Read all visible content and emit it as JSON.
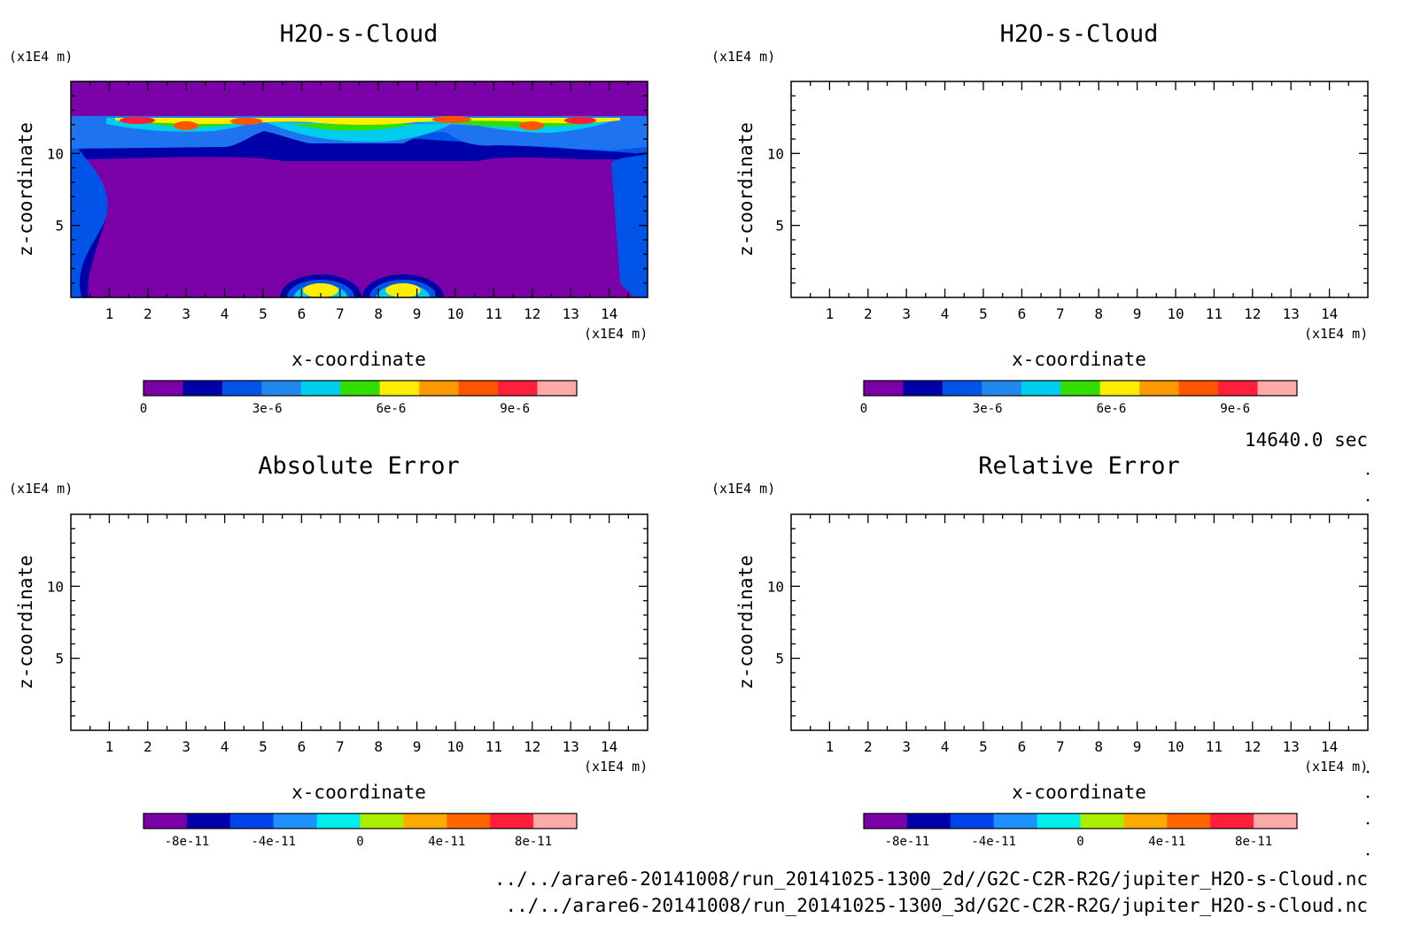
{
  "chart_data": [
    {
      "type": "heatmap",
      "title": "H2O-s-Cloud",
      "xlabel": "x-coordinate",
      "ylabel": "z-coordinate",
      "x_unit": "(x1E4 m)",
      "y_unit": "(x1E4 m)",
      "xlim": [
        0,
        15
      ],
      "ylim": [
        0,
        15
      ],
      "x_ticks": [
        "1",
        "2",
        "3",
        "4",
        "5",
        "6",
        "7",
        "8",
        "9",
        "10",
        "11",
        "12",
        "13",
        "14"
      ],
      "y_ticks": [
        "5",
        "10"
      ],
      "colorbar": {
        "min": 0,
        "max": 1.05e-05,
        "levels": 11,
        "tick_values": [
          0,
          3e-06,
          6e-06,
          9e-06
        ],
        "tick_labels": [
          "0",
          "3e-6",
          "6e-6",
          "9e-6"
        ]
      }
    },
    {
      "type": "heatmap",
      "title": "H2O-s-Cloud",
      "xlabel": "x-coordinate",
      "ylabel": "z-coordinate",
      "x_unit": "(x1E4 m)",
      "y_unit": "(x1E4 m)",
      "xlim": [
        0,
        15
      ],
      "ylim": [
        0,
        15
      ],
      "x_ticks": [
        "1",
        "2",
        "3",
        "4",
        "5",
        "6",
        "7",
        "8",
        "9",
        "10",
        "11",
        "12",
        "13",
        "14"
      ],
      "y_ticks": [
        "5",
        "10"
      ],
      "colorbar": {
        "min": 0,
        "max": 1.05e-05,
        "levels": 11,
        "tick_values": [
          0,
          3e-06,
          6e-06,
          9e-06
        ],
        "tick_labels": [
          "0",
          "3e-6",
          "6e-6",
          "9e-6"
        ]
      }
    },
    {
      "type": "heatmap",
      "title": "Absolute Error",
      "xlabel": "x-coordinate",
      "ylabel": "z-coordinate",
      "x_unit": "(x1E4 m)",
      "y_unit": "(x1E4 m)",
      "xlim": [
        0,
        15
      ],
      "ylim": [
        0,
        15
      ],
      "x_ticks": [
        "1",
        "2",
        "3",
        "4",
        "5",
        "6",
        "7",
        "8",
        "9",
        "10",
        "11",
        "12",
        "13",
        "14"
      ],
      "y_ticks": [
        "5",
        "10"
      ],
      "colorbar": {
        "min": -1e-10,
        "max": 1e-10,
        "levels": 10,
        "tick_values": [
          -8e-11,
          -4e-11,
          0,
          4e-11,
          8e-11
        ],
        "tick_labels": [
          "-8e-11",
          "-4e-11",
          "0",
          "4e-11",
          "8e-11"
        ]
      }
    },
    {
      "type": "heatmap",
      "title": "Relative Error",
      "xlabel": "x-coordinate",
      "ylabel": "z-coordinate",
      "x_unit": "(x1E4 m)",
      "y_unit": "(x1E4 m)",
      "xlim": [
        0,
        15
      ],
      "ylim": [
        0,
        15
      ],
      "x_ticks": [
        "1",
        "2",
        "3",
        "4",
        "5",
        "6",
        "7",
        "8",
        "9",
        "10",
        "11",
        "12",
        "13",
        "14"
      ],
      "y_ticks": [
        "5",
        "10"
      ],
      "colorbar": {
        "min": -1e-10,
        "max": 1e-10,
        "levels": 10,
        "tick_values": [
          -8e-11,
          -4e-11,
          0,
          4e-11,
          8e-11
        ],
        "tick_labels": [
          "-8e-11",
          "-4e-11",
          "0",
          "4e-11",
          "8e-11"
        ]
      }
    }
  ],
  "colors": {
    "cloud_levels": [
      "#7b00a8",
      "#0000a8",
      "#0055e8",
      "#2288ee",
      "#00ccee",
      "#33dd00",
      "#ffee00",
      "#ff9900",
      "#ff5500",
      "#ff1f3a",
      "#ffaaaa"
    ],
    "error_levels": [
      "#7b00a8",
      "#0000a8",
      "#0044ee",
      "#1e90ff",
      "#00eeee",
      "#aaee00",
      "#ffaa00",
      "#ff6600",
      "#ff1f3a",
      "#ffaaaa"
    ]
  },
  "time_label": "14640.0 sec",
  "file_paths": [
    "../../arare6-20141008/run_20141025-1300_2d//G2C-C2R-R2G/jupiter_H2O-s-Cloud.nc",
    "../../arare6-20141008/run_20141025-1300_3d/G2C-C2R-R2G/jupiter_H2O-s-Cloud.nc"
  ]
}
